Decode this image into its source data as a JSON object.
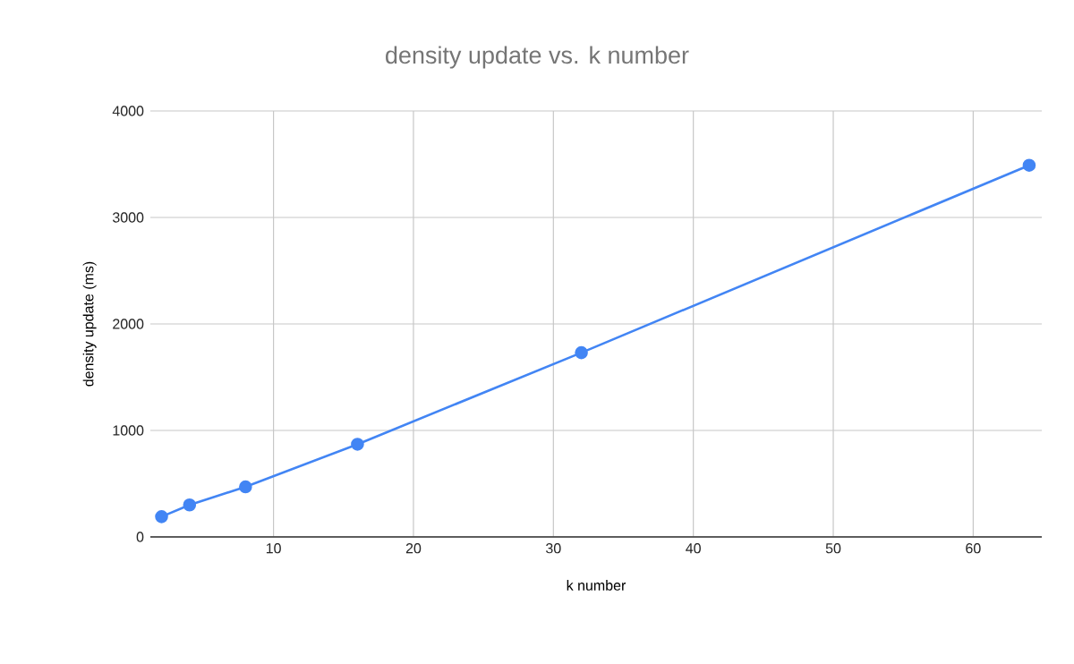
{
  "chart_data": {
    "type": "line",
    "title": "density update vs. k number",
    "xlabel": "k number",
    "ylabel": "density update (ms)",
    "x": [
      2,
      4,
      8,
      16,
      32,
      64
    ],
    "series": [
      {
        "color": "#4285f4",
        "values": [
          190,
          300,
          470,
          870,
          1730,
          3490
        ]
      }
    ],
    "xlim": [
      1.2,
      64.9
    ],
    "xticks": [
      10,
      20,
      30,
      40,
      50,
      60
    ],
    "ylim": [
      0,
      4000
    ],
    "yticks": [
      0,
      1000,
      2000,
      3000,
      4000
    ],
    "grid": true,
    "marker": "circle",
    "line_style": "solid"
  }
}
